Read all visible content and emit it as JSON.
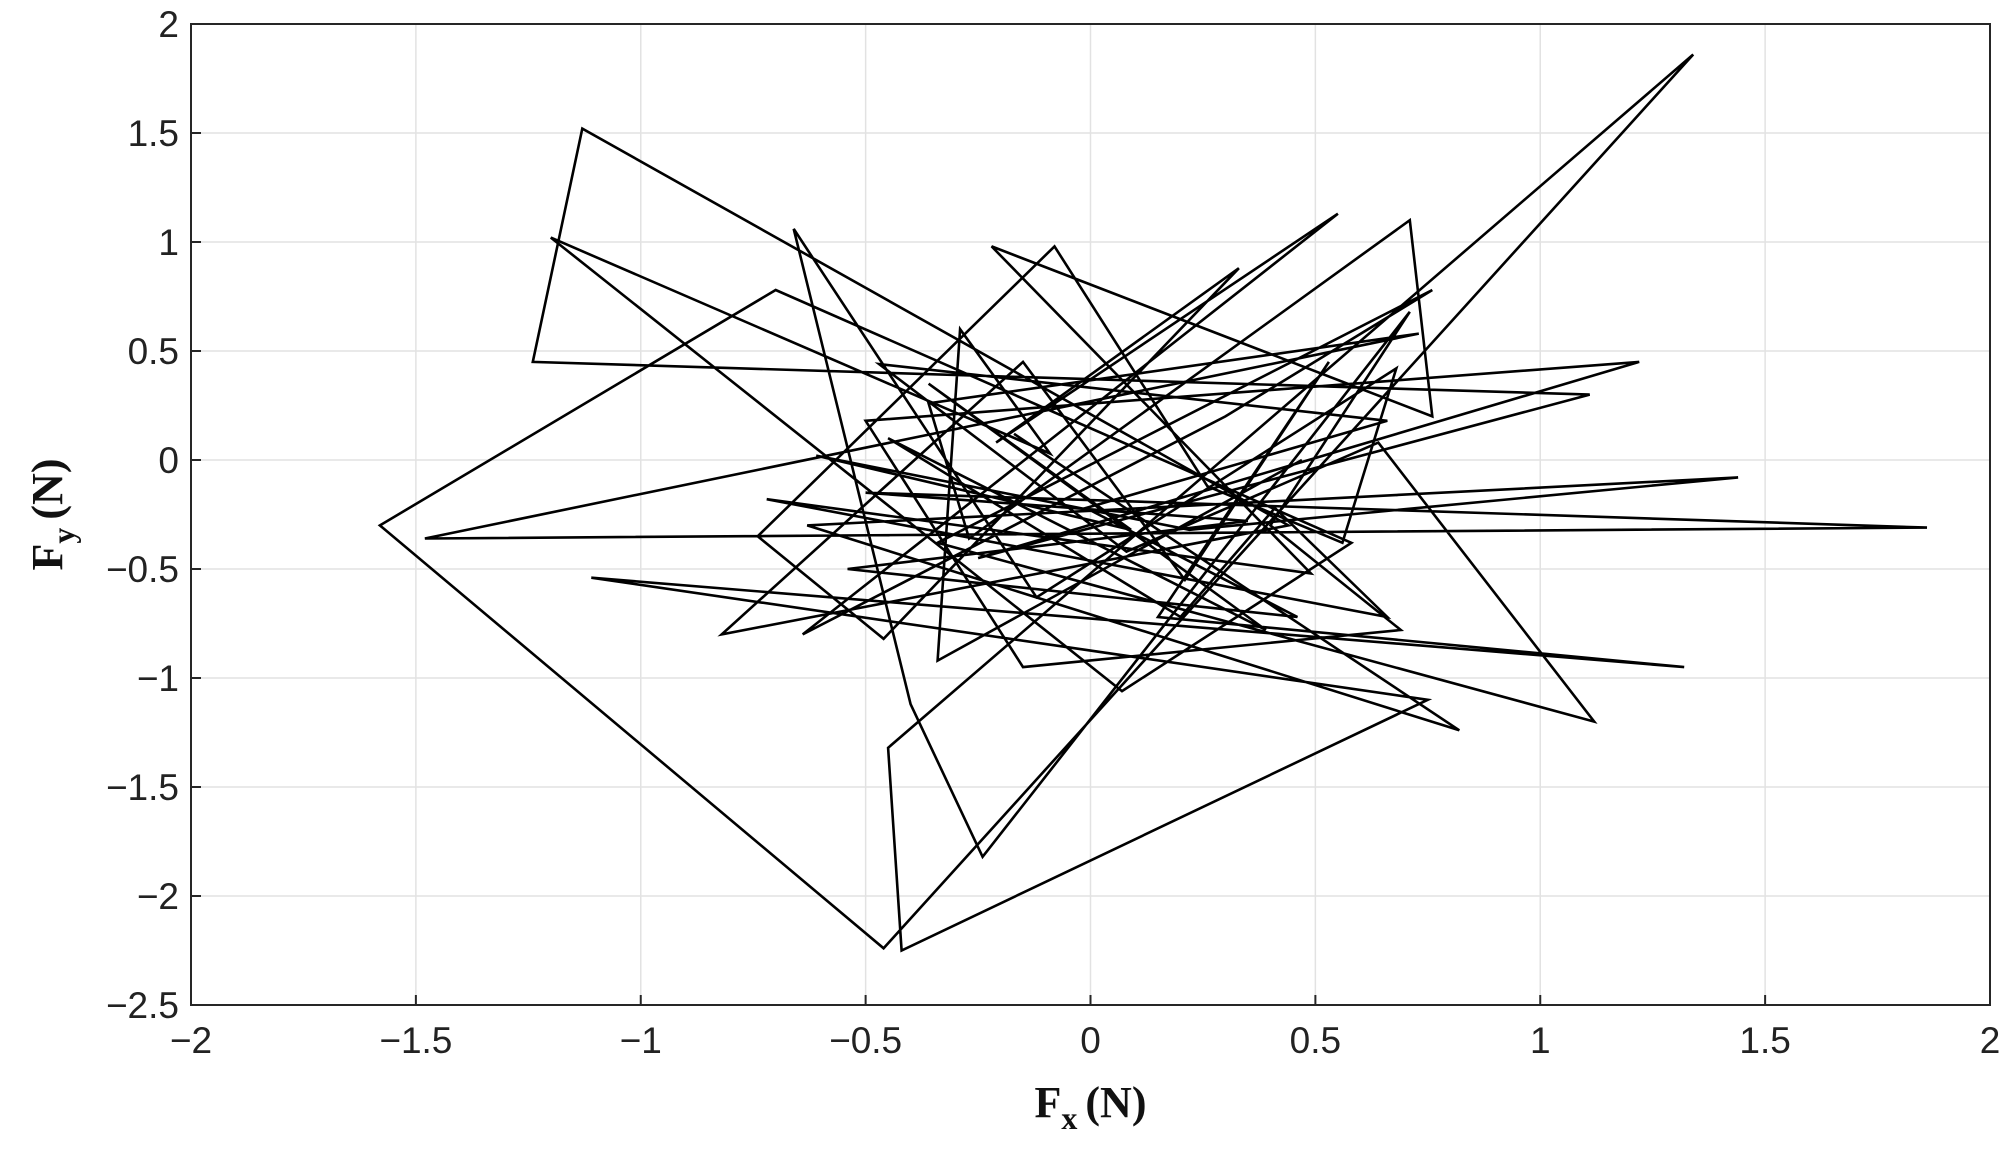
{
  "chart_data": {
    "type": "line",
    "title": "",
    "xlabel": {
      "base": "F",
      "sub": "x",
      "unit": "(N)"
    },
    "ylabel": {
      "base": "F",
      "sub": "y",
      "unit": "(N)"
    },
    "xlim": [
      -2,
      2
    ],
    "ylim": [
      -2.5,
      2
    ],
    "grid": true,
    "legend": "none",
    "line_color": "#000000",
    "x_ticks": [
      -2,
      -1.5,
      -1,
      -0.5,
      0,
      0.5,
      1,
      1.5,
      2
    ],
    "x_tick_labels": [
      "−2",
      "−1.5",
      "−1",
      "−0.5",
      "0",
      "0.5",
      "1",
      "1.5",
      "2"
    ],
    "y_ticks": [
      -2.5,
      -2,
      -1.5,
      -1,
      -0.5,
      0,
      0.5,
      1,
      1.5,
      2
    ],
    "y_tick_labels": [
      "−2.5",
      "−2",
      "−1.5",
      "−1",
      "−0.5",
      "0",
      "0.5",
      "1",
      "1.5",
      "2"
    ],
    "series": [
      {
        "x": [
          0.47,
          -0.34,
          -0.29,
          -0.09,
          -1.2,
          0.07,
          0.58,
          -0.7,
          -1.58,
          -0.46,
          1.34,
          -0.45,
          -0.42,
          0.75,
          -1.11,
          1.32,
          0.15,
          0.53,
          0.21,
          -0.15,
          -0.82,
          0.44,
          -1.13,
          -1.24,
          1.11,
          -0.25,
          1.22,
          -0.5,
          -0.15,
          0.69,
          0.4,
          0.71,
          -0.24,
          -0.4,
          -0.66,
          -0.12,
          0.68,
          0.56,
          0.26,
          -0.08,
          -0.74,
          -0.46,
          0.33,
          -0.21,
          0.55,
          -0.64,
          0.3,
          0.76,
          -0.34,
          1.12,
          0.64,
          0.08,
          -0.47,
          0.66,
          -0.01,
          0.46,
          -0.54,
          0.35,
          -0.5,
          1.86,
          -1.48,
          0.73,
          -0.36,
          -0.27,
          0.71,
          0.76,
          -0.22,
          0.49,
          -0.72,
          0.66,
          0.41,
          0.2,
          -0.45,
          0.39,
          -0.36,
          0.09,
          -0.61,
          0.22,
          1.44,
          -0.63,
          0.82,
          -0.17
        ],
        "y": [
          0.0,
          -0.92,
          0.6,
          0.03,
          1.02,
          -1.06,
          -0.38,
          0.78,
          -0.3,
          -2.24,
          1.86,
          -1.32,
          -2.25,
          -1.1,
          -0.54,
          -0.95,
          -0.72,
          0.45,
          -0.55,
          0.45,
          -0.8,
          -0.3,
          1.52,
          0.45,
          0.3,
          -0.45,
          0.45,
          0.18,
          -0.95,
          -0.78,
          -0.3,
          0.68,
          -1.82,
          -1.12,
          1.06,
          -0.63,
          0.42,
          -0.38,
          -0.12,
          0.98,
          -0.35,
          -0.82,
          0.88,
          0.08,
          1.13,
          -0.8,
          0.2,
          0.78,
          -0.38,
          -1.2,
          0.08,
          -0.42,
          0.44,
          0.18,
          -0.22,
          -0.72,
          -0.5,
          -0.28,
          -0.15,
          -0.31,
          -0.36,
          0.58,
          0.26,
          -0.36,
          1.1,
          0.2,
          0.98,
          -0.52,
          -0.18,
          -0.72,
          -0.22,
          -0.72,
          0.1,
          -0.78,
          0.35,
          -0.32,
          0.02,
          -0.32,
          -0.08,
          -0.3,
          -1.24,
          0.12
        ]
      }
    ]
  }
}
